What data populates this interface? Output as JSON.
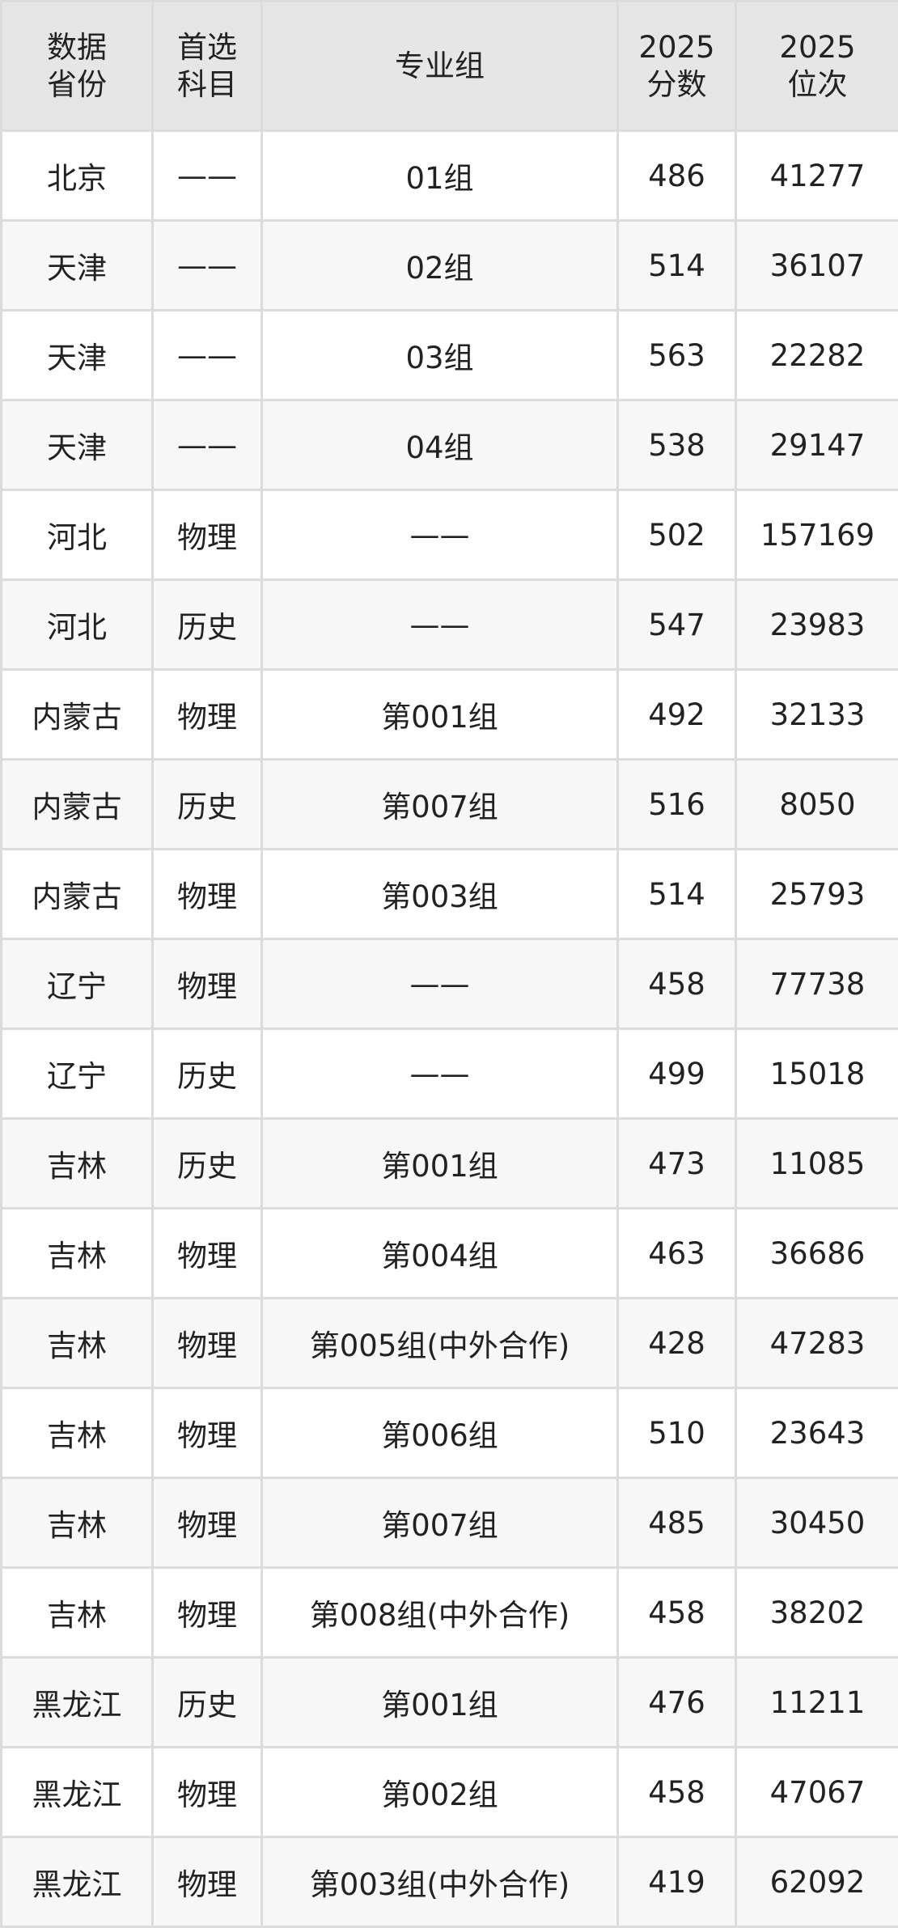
{
  "table": {
    "headers": [
      [
        "数据",
        "省份"
      ],
      [
        "首选",
        "科目"
      ],
      [
        "专业组"
      ],
      [
        "2025",
        "分数"
      ],
      [
        "2025",
        "位次"
      ]
    ],
    "rows": [
      [
        "北京",
        "——",
        "01组",
        "486",
        "41277"
      ],
      [
        "天津",
        "——",
        "02组",
        "514",
        "36107"
      ],
      [
        "天津",
        "——",
        "03组",
        "563",
        "22282"
      ],
      [
        "天津",
        "——",
        "04组",
        "538",
        "29147"
      ],
      [
        "河北",
        "物理",
        "——",
        "502",
        "157169"
      ],
      [
        "河北",
        "历史",
        "——",
        "547",
        "23983"
      ],
      [
        "内蒙古",
        "物理",
        "第001组",
        "492",
        "32133"
      ],
      [
        "内蒙古",
        "历史",
        "第007组",
        "516",
        "8050"
      ],
      [
        "内蒙古",
        "物理",
        "第003组",
        "514",
        "25793"
      ],
      [
        "辽宁",
        "物理",
        "——",
        "458",
        "77738"
      ],
      [
        "辽宁",
        "历史",
        "——",
        "499",
        "15018"
      ],
      [
        "吉林",
        "历史",
        "第001组",
        "473",
        "11085"
      ],
      [
        "吉林",
        "物理",
        "第004组",
        "463",
        "36686"
      ],
      [
        "吉林",
        "物理",
        "第005组(中外合作)",
        "428",
        "47283"
      ],
      [
        "吉林",
        "物理",
        "第006组",
        "510",
        "23643"
      ],
      [
        "吉林",
        "物理",
        "第007组",
        "485",
        "30450"
      ],
      [
        "吉林",
        "物理",
        "第008组(中外合作)",
        "458",
        "38202"
      ],
      [
        "黑龙江",
        "历史",
        "第001组",
        "476",
        "11211"
      ],
      [
        "黑龙江",
        "物理",
        "第002组",
        "458",
        "47067"
      ],
      [
        "黑龙江",
        "物理",
        "第003组(中外合作)",
        "419",
        "62092"
      ]
    ]
  }
}
